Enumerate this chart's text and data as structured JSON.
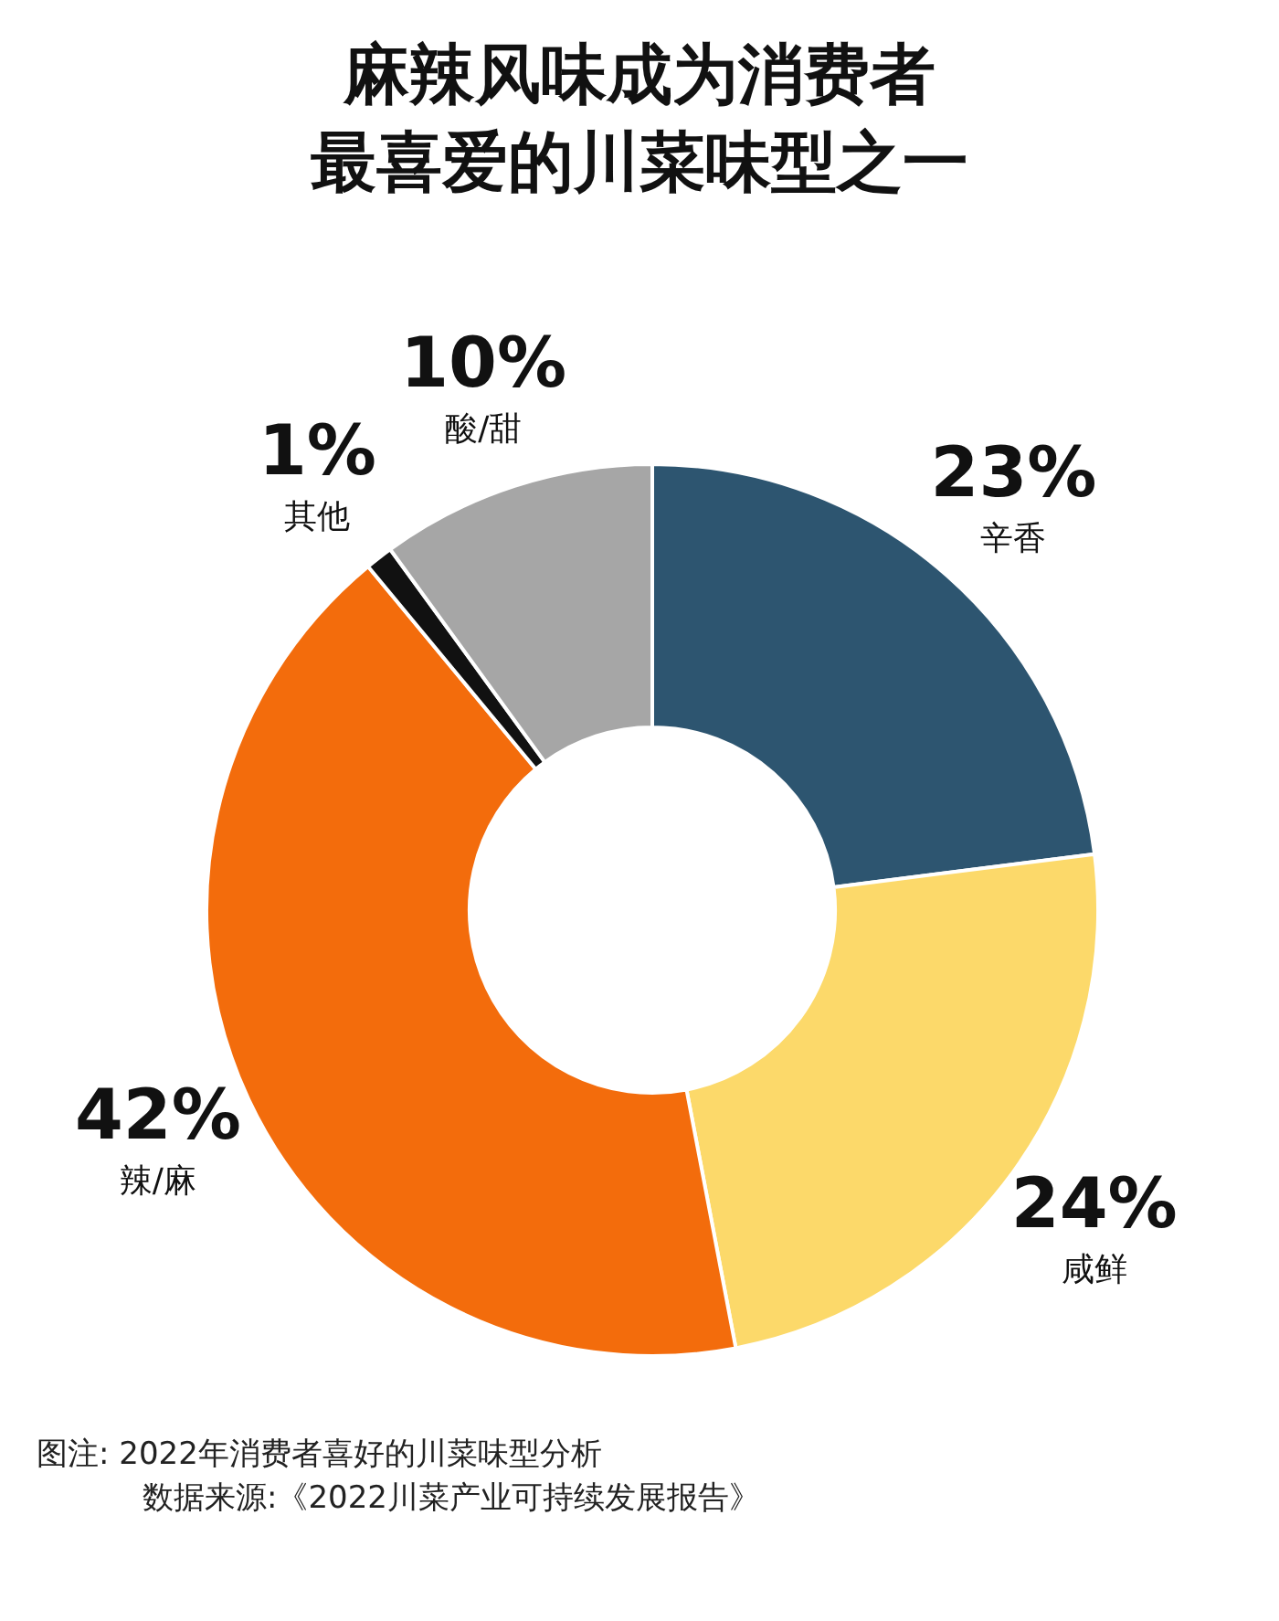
{
  "chart_data": {
    "type": "donut",
    "title": "麻辣风味成为消费者最喜爱的川菜味型之一",
    "categories": [
      "辛香",
      "咸鲜",
      "辣/麻",
      "其他",
      "酸/甜"
    ],
    "values": [
      23,
      24,
      42,
      1,
      10
    ],
    "colors": [
      "#2d5570",
      "#fcd96a",
      "#f36c0c",
      "#111111",
      "#a6a6a6"
    ],
    "value_labels": [
      "23%",
      "24%",
      "42%",
      "1%",
      "10%"
    ],
    "legend": false,
    "annotations": [
      "图注: 2022年消费者喜好的川菜味型分析",
      "数据来源:《2022川菜产业可持续发展报告》"
    ]
  }
}
